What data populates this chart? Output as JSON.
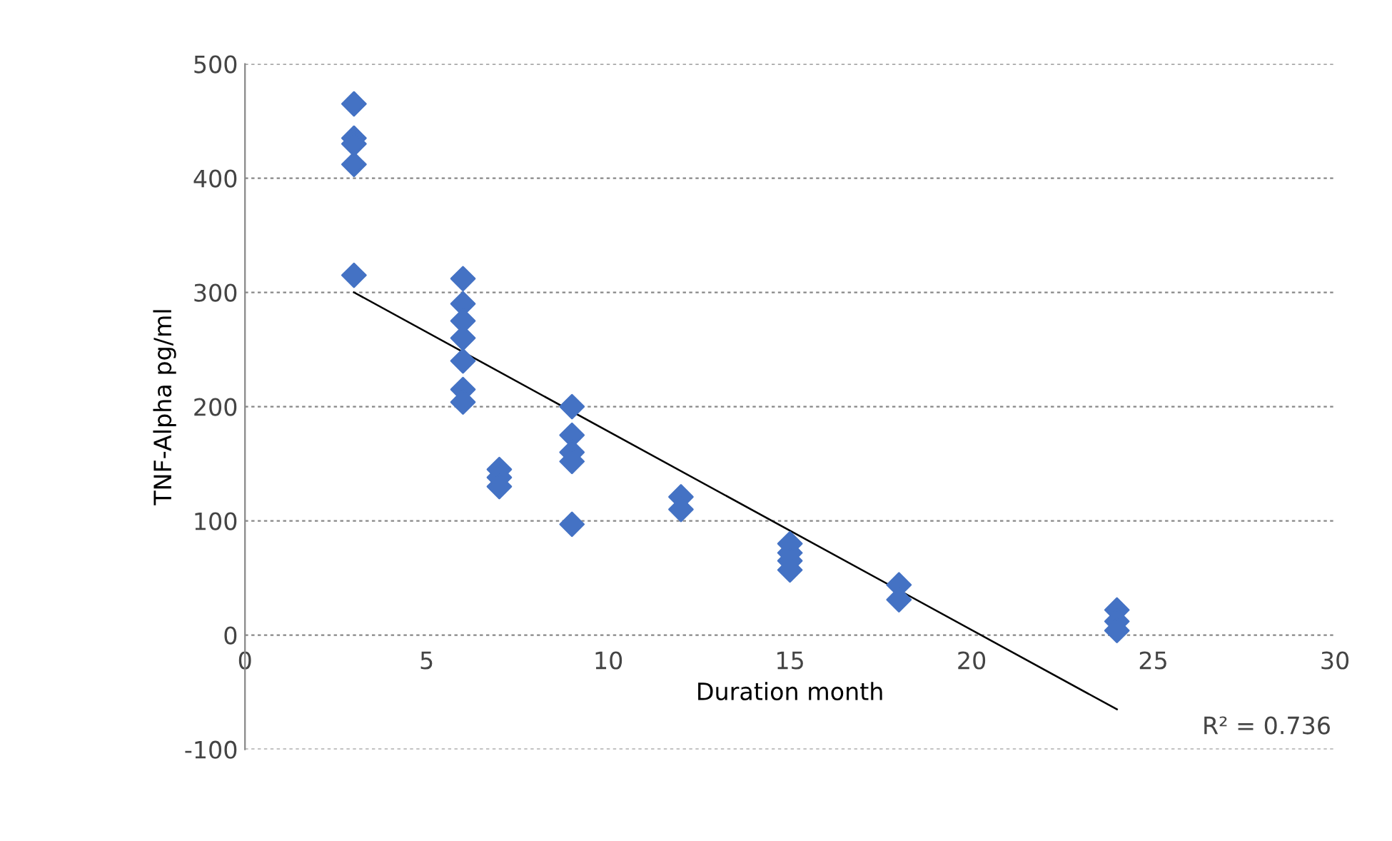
{
  "chart_data": {
    "type": "scatter",
    "xlabel": "Duration month",
    "ylabel": "TNF-Alpha pg/ml",
    "xlim": [
      0,
      30
    ],
    "xticks": [
      0,
      5,
      10,
      15,
      20,
      25,
      30
    ],
    "ylim": [
      -100,
      500
    ],
    "yticks": [
      -100,
      0,
      100,
      200,
      300,
      400,
      500
    ],
    "grid": "y",
    "series": [
      {
        "marker": "diamond",
        "color": "#4472c4",
        "x": [
          3,
          3,
          3,
          3,
          3,
          6,
          6,
          6,
          6,
          6,
          6,
          6,
          7,
          7,
          7,
          9,
          9,
          9,
          9,
          9,
          12,
          12,
          15,
          15,
          15,
          15,
          18,
          18,
          24,
          24,
          24
        ],
        "values": [
          465,
          435,
          430,
          412,
          315,
          312,
          290,
          275,
          260,
          240,
          215,
          204,
          145,
          138,
          130,
          200,
          175,
          160,
          152,
          97,
          121,
          110,
          80,
          72,
          65,
          57,
          44,
          31,
          22,
          12,
          4
        ]
      },
      {
        "type": "line",
        "color": "#000000",
        "x": [
          3,
          24
        ],
        "values": [
          300,
          -65
        ]
      }
    ],
    "annotations": [
      "R² = 0.736"
    ]
  }
}
